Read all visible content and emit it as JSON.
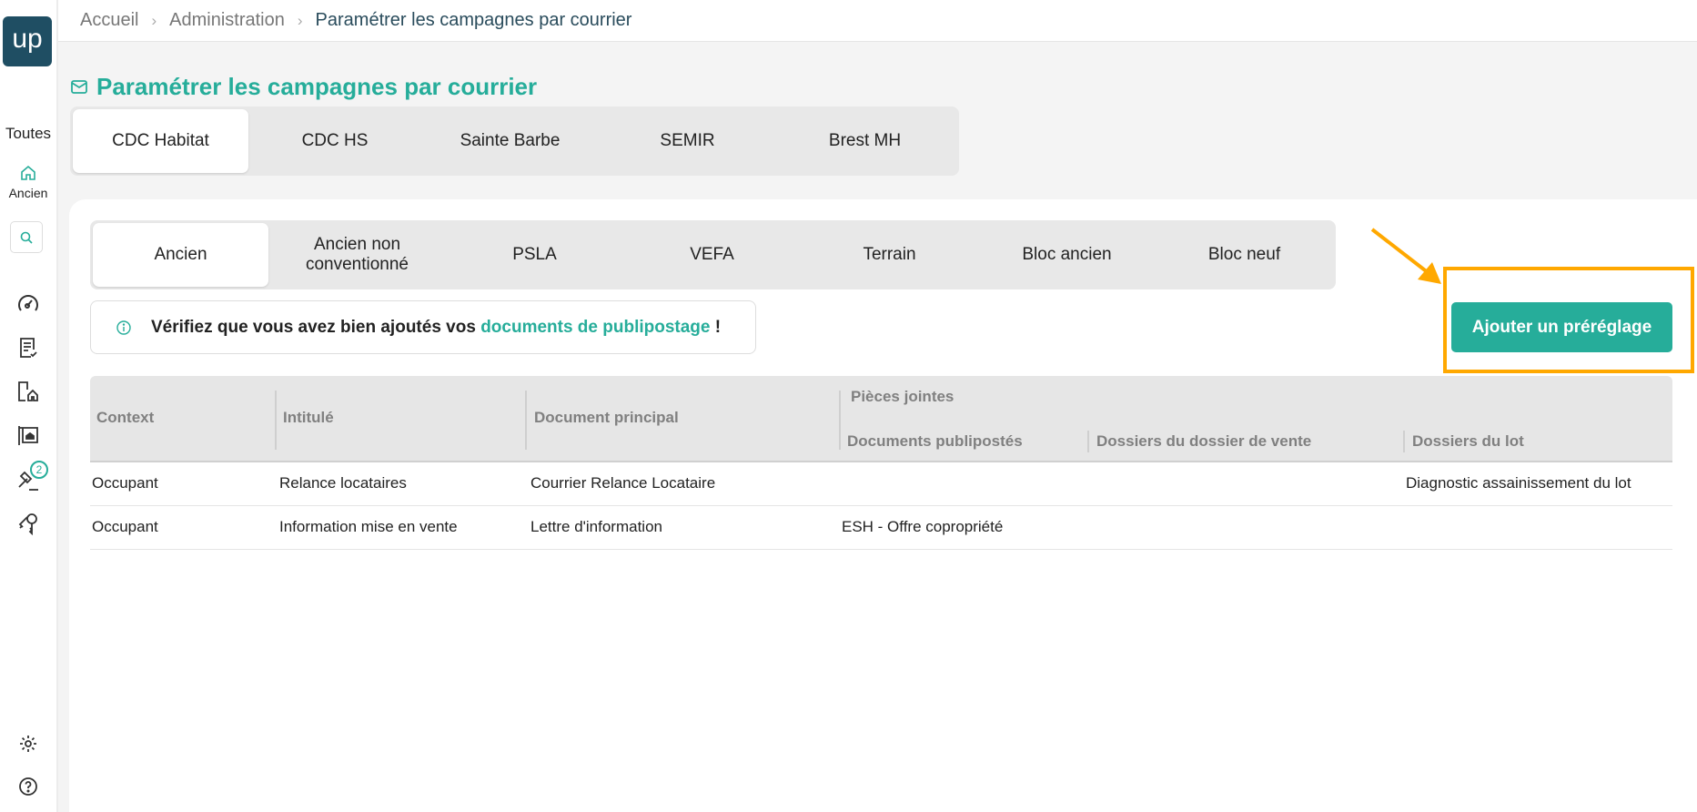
{
  "app": {
    "logo_text": "up"
  },
  "sidebar": {
    "scope_label": "Toutes",
    "home_label": "Ancien",
    "badge_count": "2",
    "icons": [
      "gauge-icon",
      "checklist-icon",
      "buildings-home-icon",
      "sale-sign-icon",
      "auction-gavel-icon",
      "keys-icon",
      "gear-icon",
      "help-icon"
    ]
  },
  "breadcrumb": [
    "Accueil",
    "Administration",
    "Paramétrer les campagnes par courrier"
  ],
  "page": {
    "title": "Paramétrer les campagnes par courrier"
  },
  "company_tabs": [
    {
      "label": "CDC Habitat",
      "active": true
    },
    {
      "label": "CDC HS"
    },
    {
      "label": "Sainte Barbe"
    },
    {
      "label": "SEMIR"
    },
    {
      "label": "Brest MH"
    }
  ],
  "type_tabs": [
    {
      "label": "Ancien",
      "active": true
    },
    {
      "label": "Ancien non conventionné"
    },
    {
      "label": "PSLA"
    },
    {
      "label": "VEFA"
    },
    {
      "label": "Terrain"
    },
    {
      "label": "Bloc ancien"
    },
    {
      "label": "Bloc neuf"
    }
  ],
  "info": {
    "text": "Vérifiez que vous avez bien ajoutés vos",
    "link": "documents de publipostage",
    "suffix": "!"
  },
  "add_button": "Ajouter un préréglage",
  "colors": {
    "accent": "#26ad9a",
    "brand": "#1f4e63",
    "highlight": "#ffa800"
  },
  "table": {
    "group_header": "Pièces jointes",
    "columns": [
      "Context",
      "Intitulé",
      "Document principal",
      "Documents publipostés",
      "Dossiers du dossier de vente",
      "Dossiers du lot"
    ],
    "rows": [
      [
        "Occupant",
        "Relance locataires",
        "Courrier Relance Locataire",
        "",
        "",
        "Diagnostic assainissement du lot"
      ],
      [
        "Occupant",
        "Information mise en vente",
        "Lettre d'information",
        "ESH - Offre copropriété",
        "",
        ""
      ]
    ]
  }
}
